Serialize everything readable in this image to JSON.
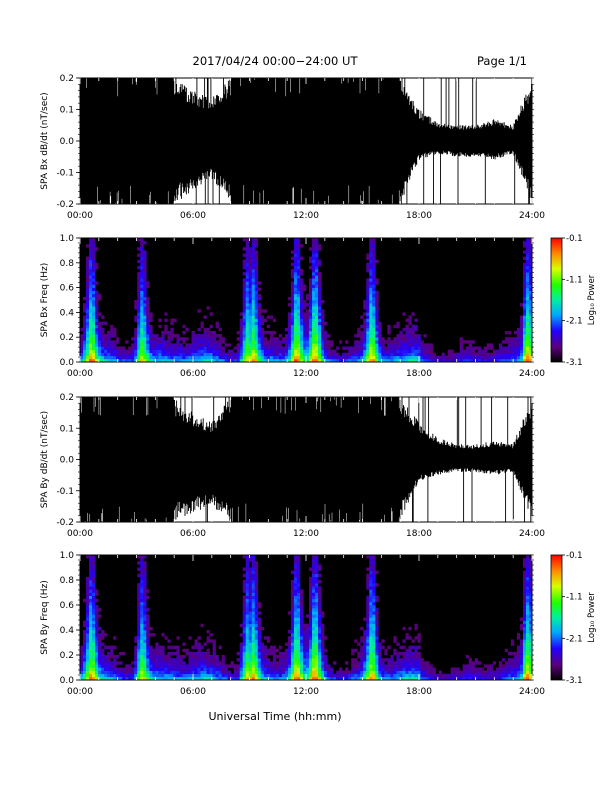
{
  "header": {
    "title": "2017/04/24  00:00−24:00 UT",
    "page": "Page 1/1"
  },
  "footer": {
    "xlabel": "Universal Time (hh:mm)"
  },
  "colorbar": {
    "label": "Log₁₀ Power",
    "ticks": [
      "-0.1",
      "-1.1",
      "-2.1",
      "-3.1"
    ]
  },
  "chart_data": [
    {
      "type": "line",
      "id": "bx-waveform",
      "ylabel": "SPA Bx dB/dt (nT/sec)",
      "xlabel": "",
      "xlim": [
        0,
        24
      ],
      "ylim": [
        -0.2,
        0.2
      ],
      "x_ticks": [
        "00:00",
        "06:00",
        "12:00",
        "18:00",
        "24:00"
      ],
      "y_ticks": [
        "-0.2",
        "-0.1",
        "0.0",
        "0.1",
        "0.2"
      ],
      "series": [
        {
          "x": [
            0,
            1,
            2,
            3,
            4,
            5,
            6,
            7,
            8,
            9,
            10,
            11,
            12,
            13,
            14,
            15,
            16,
            17,
            18,
            19,
            20,
            21,
            22,
            23,
            24
          ],
          "upper": [
            0.2,
            0.2,
            0.2,
            0.2,
            0.2,
            0.2,
            0.16,
            0.14,
            0.2,
            0.2,
            0.2,
            0.2,
            0.2,
            0.2,
            0.2,
            0.2,
            0.2,
            0.2,
            0.1,
            0.06,
            0.05,
            0.05,
            0.07,
            0.05,
            0.2
          ],
          "lower": [
            -0.2,
            -0.2,
            -0.2,
            -0.2,
            -0.2,
            -0.2,
            -0.16,
            -0.12,
            -0.2,
            -0.2,
            -0.2,
            -0.2,
            -0.2,
            -0.2,
            -0.2,
            -0.2,
            -0.2,
            -0.2,
            -0.06,
            -0.04,
            -0.05,
            -0.05,
            -0.06,
            -0.04,
            -0.2
          ]
        }
      ]
    },
    {
      "type": "heatmap",
      "id": "bx-spectrogram",
      "ylabel": "SPA Bx Freq (Hz)",
      "xlabel": "",
      "xlim": [
        0,
        24
      ],
      "ylim": [
        0,
        1
      ],
      "x_ticks": [
        "00:00",
        "06:00",
        "12:00",
        "18:00",
        "24:00"
      ],
      "y_ticks": [
        "0.0",
        "0.2",
        "0.4",
        "0.6",
        "0.8",
        "1.0"
      ],
      "zlim": [
        -3.1,
        -0.1
      ],
      "bursts": [
        0.6,
        3.3,
        8.9,
        9.2,
        11.5,
        12.5,
        15.5,
        23.8
      ]
    },
    {
      "type": "line",
      "id": "by-waveform",
      "ylabel": "SPA By dB/dt (nT/sec)",
      "xlabel": "",
      "xlim": [
        0,
        24
      ],
      "ylim": [
        -0.2,
        0.2
      ],
      "x_ticks": [
        "00:00",
        "06:00",
        "12:00",
        "18:00",
        "24:00"
      ],
      "y_ticks": [
        "-0.2",
        "-0.1",
        "0.0",
        "0.1",
        "0.2"
      ],
      "series": [
        {
          "x": [
            0,
            1,
            2,
            3,
            4,
            5,
            6,
            7,
            8,
            9,
            10,
            11,
            12,
            13,
            14,
            15,
            16,
            17,
            18,
            19,
            20,
            21,
            22,
            23,
            24
          ],
          "upper": [
            0.2,
            0.2,
            0.2,
            0.2,
            0.2,
            0.2,
            0.15,
            0.12,
            0.2,
            0.2,
            0.2,
            0.2,
            0.2,
            0.2,
            0.2,
            0.2,
            0.2,
            0.2,
            0.12,
            0.07,
            0.05,
            0.05,
            0.06,
            0.05,
            0.2
          ],
          "lower": [
            -0.2,
            -0.2,
            -0.2,
            -0.2,
            -0.2,
            -0.2,
            -0.17,
            -0.15,
            -0.2,
            -0.2,
            -0.2,
            -0.2,
            -0.2,
            -0.2,
            -0.2,
            -0.2,
            -0.2,
            -0.2,
            -0.07,
            -0.05,
            -0.04,
            -0.04,
            -0.05,
            -0.04,
            -0.2
          ]
        }
      ]
    },
    {
      "type": "heatmap",
      "id": "by-spectrogram",
      "ylabel": "SPA By Freq (Hz)",
      "xlabel": "",
      "xlim": [
        0,
        24
      ],
      "ylim": [
        0,
        1
      ],
      "x_ticks": [
        "00:00",
        "06:00",
        "12:00",
        "18:00",
        "24:00"
      ],
      "y_ticks": [
        "0.0",
        "0.2",
        "0.4",
        "0.6",
        "0.8",
        "1.0"
      ],
      "zlim": [
        -3.1,
        -0.1
      ],
      "bursts": [
        0.6,
        3.3,
        8.9,
        9.2,
        11.5,
        12.5,
        15.5,
        23.8
      ]
    }
  ]
}
